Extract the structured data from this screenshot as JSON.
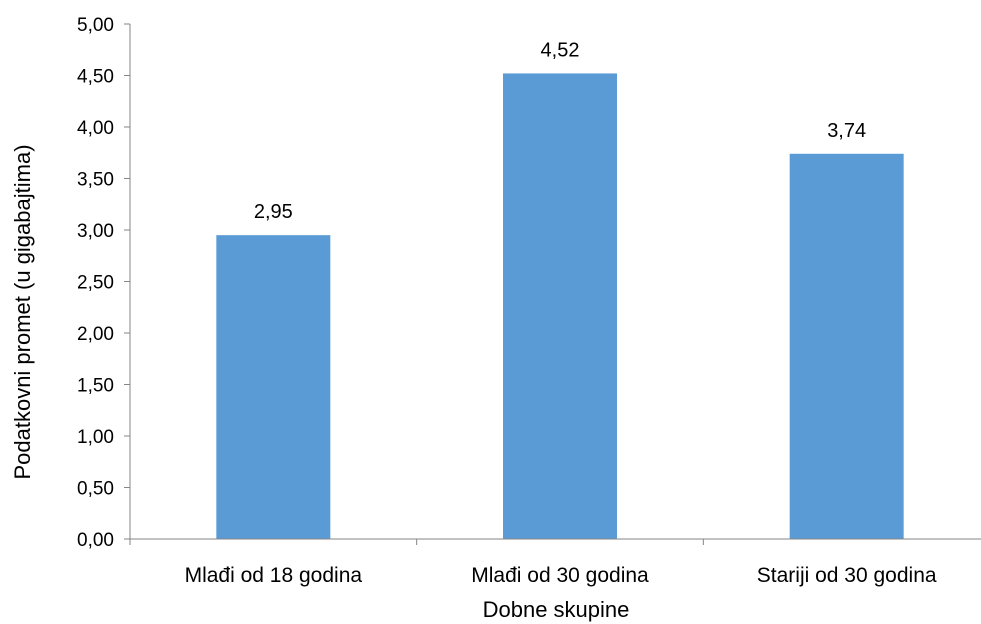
{
  "chart_data": {
    "type": "bar",
    "title": "",
    "xlabel": "Dobne skupine",
    "ylabel": "Podatkovni promet (u gigabajtima)",
    "categories": [
      "Mlađi od 18 godina",
      "Mlađi od 30 godina",
      "Stariji od 30 godina"
    ],
    "values": [
      2.95,
      4.52,
      3.74
    ],
    "value_labels": [
      "2,95",
      "4,52",
      "3,74"
    ],
    "ylim": [
      0,
      5
    ],
    "y_ticks": [
      "0,00",
      "0,50",
      "1,00",
      "1,50",
      "2,00",
      "2,50",
      "3,00",
      "3,50",
      "4,00",
      "4,50",
      "5,00"
    ],
    "grid": false,
    "legend": "none",
    "bar_color": "#5b9bd5"
  }
}
